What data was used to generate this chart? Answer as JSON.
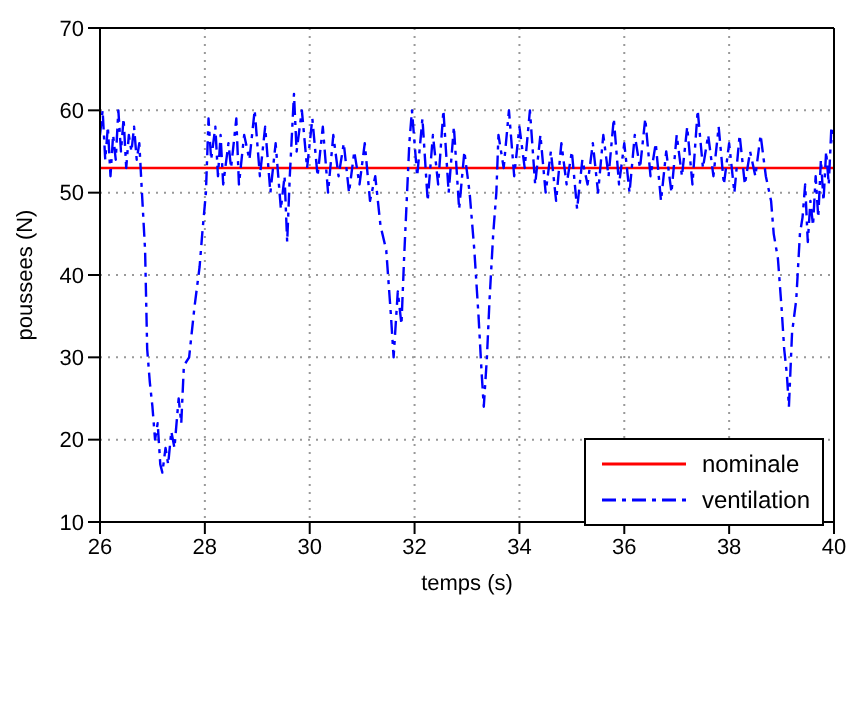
{
  "chart_data": {
    "type": "line",
    "xlabel": "temps (s)",
    "ylabel": "poussees (N)",
    "xlim": [
      26,
      40
    ],
    "xticks": [
      26,
      28,
      30,
      32,
      34,
      36,
      38,
      40
    ],
    "ylim": [
      10,
      70
    ],
    "yticks": [
      10,
      20,
      30,
      40,
      50,
      60,
      70
    ],
    "grid": true,
    "legend": "bottom right",
    "marker": "none",
    "series": [
      {
        "name": "nominale",
        "color": "#ff0000",
        "line_style": "solid",
        "x": [
          26,
          40
        ],
        "values": [
          53,
          53
        ]
      },
      {
        "name": "ventilation",
        "color": "#0000ff",
        "line_style": "dashed",
        "x": [
          26.0,
          26.05,
          26.1,
          26.15,
          26.2,
          26.25,
          26.3,
          26.35,
          26.4,
          26.45,
          26.5,
          26.55,
          26.6,
          26.65,
          26.7,
          26.75,
          26.8,
          26.86,
          26.9,
          26.95,
          27.0,
          27.05,
          27.1,
          27.15,
          27.19,
          27.25,
          27.3,
          27.36,
          27.42,
          27.5,
          27.55,
          27.6,
          27.7,
          27.8,
          27.9,
          27.95,
          28.02,
          28.07,
          28.12,
          28.2,
          28.25,
          28.3,
          28.35,
          28.45,
          28.5,
          28.6,
          28.65,
          28.75,
          28.85,
          28.95,
          29.05,
          29.15,
          29.25,
          29.35,
          29.45,
          29.52,
          29.57,
          29.62,
          29.7,
          29.75,
          29.85,
          29.95,
          30.05,
          30.15,
          30.25,
          30.35,
          30.45,
          30.55,
          30.65,
          30.75,
          30.85,
          30.95,
          31.05,
          31.15,
          31.25,
          31.35,
          31.46,
          31.55,
          31.6,
          31.68,
          31.75,
          31.8,
          31.9,
          31.95,
          32.05,
          32.15,
          32.25,
          32.35,
          32.45,
          32.55,
          32.65,
          32.75,
          32.85,
          32.95,
          33.05,
          33.14,
          33.22,
          33.28,
          33.32,
          33.38,
          33.43,
          33.5,
          33.56,
          33.6,
          33.7,
          33.8,
          33.9,
          34.0,
          34.1,
          34.2,
          34.3,
          34.4,
          34.5,
          34.6,
          34.7,
          34.8,
          34.9,
          35.0,
          35.1,
          35.2,
          35.3,
          35.4,
          35.5,
          35.6,
          35.7,
          35.8,
          35.9,
          36.0,
          36.1,
          36.2,
          36.3,
          36.4,
          36.5,
          36.6,
          36.7,
          36.8,
          36.9,
          37.0,
          37.1,
          37.2,
          37.3,
          37.4,
          37.5,
          37.6,
          37.7,
          37.8,
          37.9,
          38.0,
          38.1,
          38.2,
          38.3,
          38.4,
          38.5,
          38.6,
          38.7,
          38.8,
          38.85,
          38.93,
          39.0,
          39.05,
          39.1,
          39.14,
          39.2,
          39.28,
          39.35,
          39.4,
          39.45,
          39.5,
          39.55,
          39.6,
          39.65,
          39.7,
          39.75,
          39.8,
          39.85,
          39.9,
          39.95,
          40.0
        ],
        "values": [
          57,
          60,
          54,
          58,
          52,
          57,
          54,
          60,
          55,
          59,
          53,
          57,
          55,
          58,
          54,
          56,
          50,
          43,
          31,
          27,
          24,
          20,
          22,
          17,
          16,
          19,
          17,
          21,
          19,
          25,
          22,
          29,
          30,
          36,
          41,
          45,
          50,
          59,
          54,
          58,
          52,
          57,
          51,
          56,
          53,
          59,
          51,
          57,
          54,
          60,
          52,
          58,
          50,
          56,
          48,
          52,
          44,
          52,
          62,
          55,
          60,
          53,
          59,
          52,
          58,
          50,
          57,
          52,
          56,
          50,
          55,
          51,
          56,
          49,
          52,
          46,
          43,
          35,
          30,
          38,
          34,
          42,
          56,
          60,
          52,
          59,
          49,
          57,
          51,
          60,
          50,
          58,
          48,
          55,
          50,
          43,
          35,
          28,
          24,
          30,
          37,
          45,
          50,
          57,
          53,
          60,
          52,
          58,
          53,
          60,
          51,
          57,
          50,
          55,
          49,
          56,
          51,
          55,
          48,
          54,
          51,
          56,
          50,
          57,
          52,
          59,
          51,
          56,
          50,
          57,
          53,
          59,
          52,
          56,
          49,
          55,
          50,
          57,
          52,
          58,
          51,
          60,
          53,
          57,
          52,
          58,
          51,
          56,
          50,
          57,
          51,
          55,
          52,
          57,
          52,
          49,
          45,
          42,
          36,
          31,
          28,
          24,
          33,
          37,
          45,
          47,
          51,
          44,
          49,
          46,
          52,
          47,
          54,
          49,
          55,
          51,
          58,
          56
        ]
      }
    ]
  }
}
